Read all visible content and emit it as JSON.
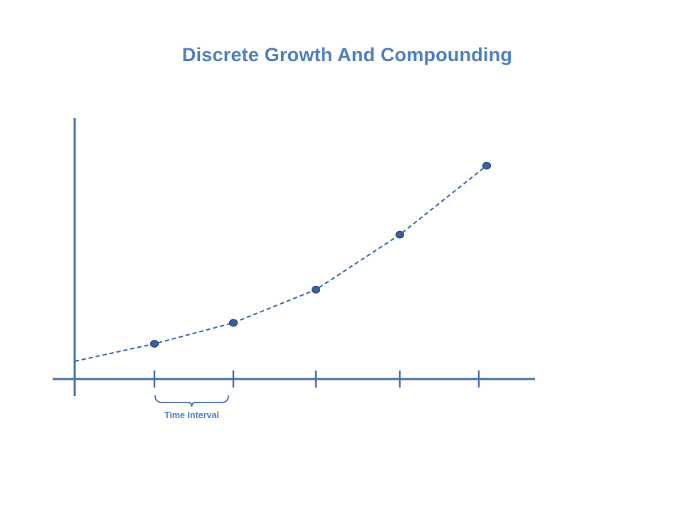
{
  "title": "Discrete Growth And Compounding",
  "interval_label": "Time Interval",
  "colors": {
    "title": "#4f81bd",
    "axis": "#4a72a8",
    "curve": "#3a6aaa",
    "point_fill": "#3b5f9a",
    "point_stroke": "#2a4a80",
    "label": "#4f81bd"
  },
  "chart_data": {
    "type": "line",
    "series": [
      {
        "x": [
          0,
          1,
          2,
          3,
          4,
          5
        ],
        "y": [
          1.0,
          1.2,
          1.44,
          1.82,
          2.45,
          3.24
        ],
        "markers": [
          false,
          true,
          true,
          true,
          true,
          true
        ],
        "line_style": "dashed"
      }
    ],
    "x_ticks": [
      1,
      2,
      3,
      4,
      5
    ],
    "interval_bracket": [
      1,
      2
    ],
    "grid": false,
    "legend": false
  }
}
